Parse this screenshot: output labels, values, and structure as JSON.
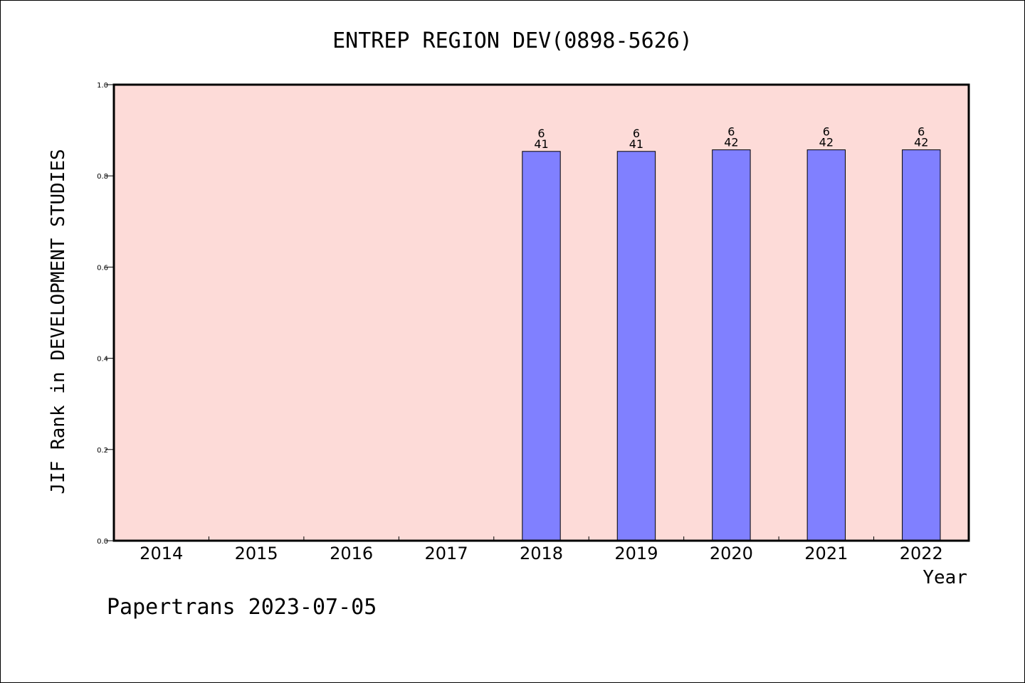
{
  "chart_data": {
    "type": "bar",
    "title": "ENTREP REGION DEV(0898-5626)",
    "xlabel": "Year",
    "ylabel": "JIF Rank in DEVELOPMENT STUDIES",
    "categories": [
      "2014",
      "2015",
      "2016",
      "2017",
      "2018",
      "2019",
      "2020",
      "2021",
      "2022"
    ],
    "values": [
      null,
      null,
      null,
      null,
      0.8537,
      0.8537,
      0.8571,
      0.8571,
      0.8571
    ],
    "bar_labels": [
      null,
      null,
      null,
      null,
      {
        "rank": "6",
        "total": "41"
      },
      {
        "rank": "6",
        "total": "41"
      },
      {
        "rank": "6",
        "total": "42"
      },
      {
        "rank": "6",
        "total": "42"
      },
      {
        "rank": "6",
        "total": "42"
      }
    ],
    "ylim": [
      0,
      1.0
    ],
    "yticks": [
      "0.0",
      "0.2",
      "0.4",
      "0.6",
      "0.8",
      "1.0"
    ],
    "grid": false,
    "colors": {
      "plot_background": "#fddbd8",
      "bar_fill": "#8080ff",
      "bar_edge": "#000000"
    }
  },
  "footer": {
    "text": "Papertrans 2023-07-05"
  }
}
